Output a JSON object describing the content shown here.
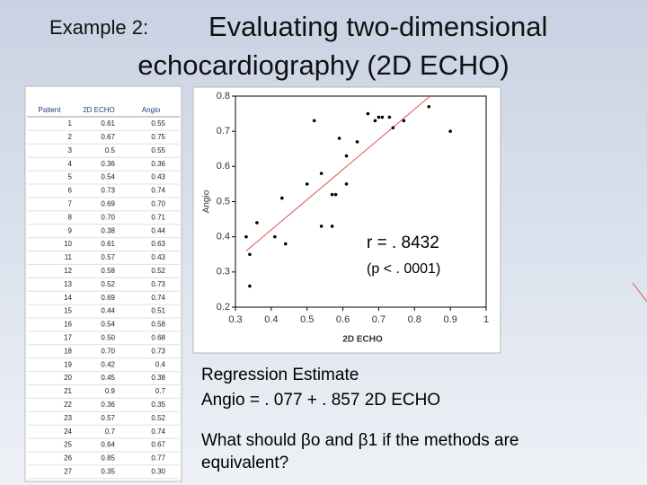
{
  "title": {
    "prefix": "Example 2:",
    "line1": "Evaluating two-dimensional",
    "line2": "echocardiography (2D ECHO)"
  },
  "table": {
    "headers": [
      "Patient",
      "2D ECHO",
      "Angio"
    ],
    "rows": [
      [
        "1",
        "0.61",
        "0.55"
      ],
      [
        "2",
        "0.67",
        "0.75"
      ],
      [
        "3",
        "0.5",
        "0.55"
      ],
      [
        "4",
        "0.36",
        "0.36"
      ],
      [
        "5",
        "0.54",
        "0.43"
      ],
      [
        "6",
        "0.73",
        "0.74"
      ],
      [
        "7",
        "0.69",
        "0.70"
      ],
      [
        "8",
        "0.70",
        "0.71"
      ],
      [
        "9",
        "0.38",
        "0.44"
      ],
      [
        "10",
        "0.61",
        "0.63"
      ],
      [
        "11",
        "0.57",
        "0.43"
      ],
      [
        "12",
        "0.58",
        "0.52"
      ],
      [
        "13",
        "0.52",
        "0.73"
      ],
      [
        "14",
        "0.69",
        "0.74"
      ],
      [
        "15",
        "0.44",
        "0.51"
      ],
      [
        "16",
        "0.54",
        "0.58"
      ],
      [
        "17",
        "0.50",
        "0.68"
      ],
      [
        "18",
        "0.70",
        "0.73"
      ],
      [
        "19",
        "0.42",
        "0.4"
      ],
      [
        "20",
        "0.45",
        "0.38"
      ],
      [
        "21",
        "0.9",
        "0.7"
      ],
      [
        "22",
        "0.36",
        "0.35"
      ],
      [
        "23",
        "0.57",
        "0.52"
      ],
      [
        "24",
        "0.7",
        "0.74"
      ],
      [
        "25",
        "0.64",
        "0.67"
      ],
      [
        "26",
        "0.85",
        "0.77"
      ],
      [
        "27",
        "0.35",
        "0.30"
      ]
    ]
  },
  "chart_data": {
    "type": "scatter",
    "x_label": "2D ECHO",
    "y_label": "Angio",
    "x": [
      0.33,
      0.34,
      0.34,
      0.36,
      0.41,
      0.43,
      0.44,
      0.5,
      0.52,
      0.54,
      0.54,
      0.57,
      0.57,
      0.58,
      0.59,
      0.61,
      0.61,
      0.64,
      0.67,
      0.69,
      0.7,
      0.71,
      0.74,
      0.73,
      0.77,
      0.84,
      0.9
    ],
    "values": [
      0.4,
      0.35,
      0.26,
      0.44,
      0.4,
      0.51,
      0.38,
      0.55,
      0.73,
      0.43,
      0.58,
      0.43,
      0.52,
      0.52,
      0.68,
      0.55,
      0.63,
      0.67,
      0.75,
      0.73,
      0.74,
      0.74,
      0.71,
      0.74,
      0.73,
      0.77,
      0.7
    ],
    "color": "#000000",
    "fit": {
      "intercept": 0.077,
      "slope": 0.857,
      "color": "#d9534f"
    },
    "xlim": [
      0.3,
      1
    ],
    "ylim": [
      0.2,
      0.8
    ],
    "xticks": [
      0.3,
      0.4,
      0.5,
      0.6,
      0.7,
      0.8,
      0.9,
      1
    ],
    "yticks": [
      0.2,
      0.3,
      0.4,
      0.5,
      0.6,
      0.7,
      0.8
    ],
    "annotations": [
      "r = . 8432",
      "(p < . 0001)"
    ]
  },
  "regression": {
    "heading": "Regression Estimate",
    "equation": "Angio = . 077 + . 857 2D ECHO"
  },
  "question": "What should βo and β1 if the methods are equivalent?"
}
